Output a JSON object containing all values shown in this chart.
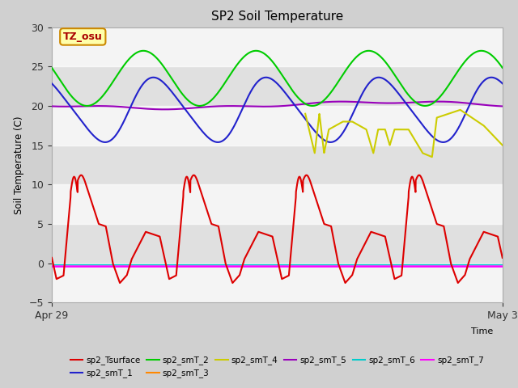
{
  "title": "SP2 Soil Temperature",
  "ylabel": "Soil Temperature (C)",
  "xlabel": "Time",
  "xlim": [
    0,
    96
  ],
  "ylim": [
    -5,
    30
  ],
  "yticks": [
    -5,
    0,
    5,
    10,
    15,
    20,
    25,
    30
  ],
  "xtick_positions": [
    0,
    96
  ],
  "xtick_labels": [
    "Apr 29",
    "May 3"
  ],
  "bg_outer": "#d0d0d0",
  "bg_plot": "#e0e0e0",
  "band_white_alpha": 0.65,
  "annotation_text": "TZ_osu",
  "annotation_bg": "#ffffaa",
  "annotation_border": "#cc8800",
  "annotation_text_color": "#aa0000",
  "colors": {
    "sp2_Tsurface": "#dd0000",
    "sp2_smT_1": "#2222cc",
    "sp2_smT_2": "#00cc00",
    "sp2_smT_3": "#ff8800",
    "sp2_smT_4": "#cccc00",
    "sp2_smT_5": "#9900bb",
    "sp2_smT_6": "#00cccc",
    "sp2_smT_7": "#ff00ff"
  },
  "legend_order": [
    "sp2_Tsurface",
    "sp2_smT_1",
    "sp2_smT_2",
    "sp2_smT_3",
    "sp2_smT_4",
    "sp2_smT_5",
    "sp2_smT_6",
    "sp2_smT_7"
  ]
}
